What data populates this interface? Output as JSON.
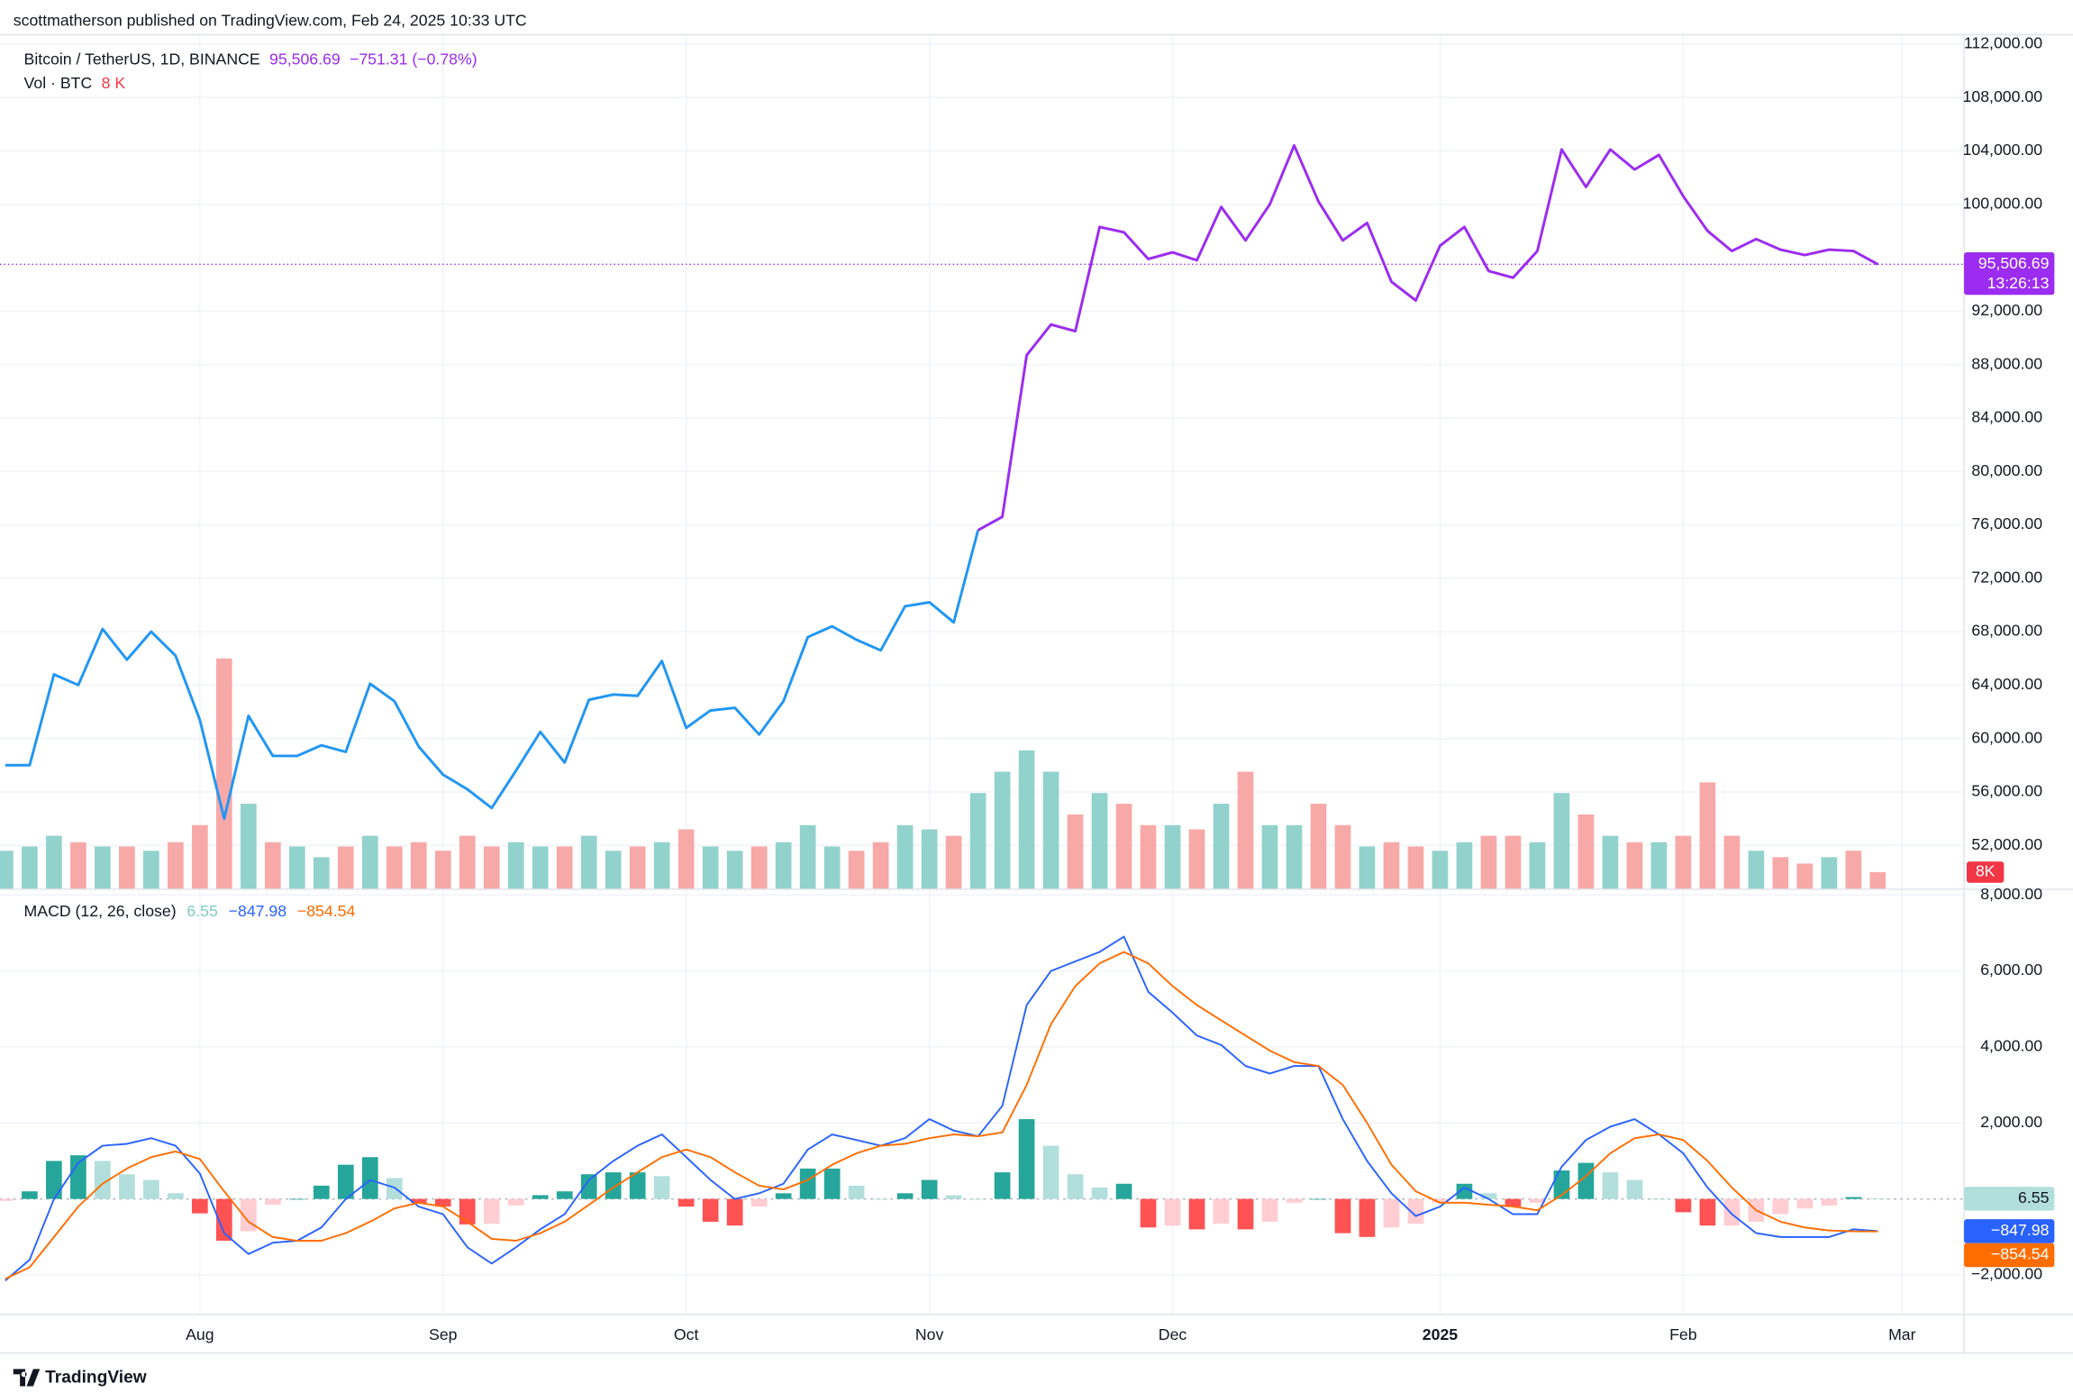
{
  "header": "scottmatherson published on TradingView.com, Feb 24, 2025 10:33 UTC",
  "footer": "TradingView",
  "chart_data": [
    {
      "type": "line",
      "title": "Bitcoin / TetherUS, 1D, BINANCE",
      "price_label": "95,506.69",
      "change_label": "−751.31 (−0.78%)",
      "countdown": "13:26:13",
      "grid": true,
      "categories": [
        null,
        null,
        null,
        null,
        null,
        null,
        null,
        null,
        "Aug",
        null,
        null,
        null,
        null,
        null,
        null,
        null,
        null,
        null,
        "Sep",
        null,
        null,
        null,
        null,
        null,
        null,
        null,
        null,
        null,
        "Oct",
        null,
        null,
        null,
        null,
        null,
        null,
        null,
        null,
        null,
        "Nov",
        null,
        null,
        null,
        null,
        null,
        null,
        null,
        null,
        null,
        "Dec",
        null,
        null,
        null,
        null,
        null,
        null,
        null,
        null,
        null,
        null,
        "2025",
        null,
        null,
        null,
        null,
        null,
        null,
        null,
        null,
        null,
        "Feb",
        null,
        null,
        null,
        null,
        null,
        null,
        null,
        null,
        "Mar",
        null,
        null
      ],
      "series": [
        {
          "color": "#2196f3",
          "values": [
            58000,
            58000,
            64800,
            64000,
            68200,
            65900,
            68000,
            66200,
            61400,
            54000,
            61700,
            58700,
            58700,
            59500,
            59000,
            64100,
            62800,
            59400,
            57300,
            56200,
            54800,
            57600,
            60500,
            58200,
            62900,
            63300,
            63200,
            65800,
            60800,
            62100,
            62300,
            60300,
            62800,
            67600,
            68400,
            67400,
            66600,
            69900,
            70200,
            68700,
            75600,
            null,
            null,
            null,
            null,
            null,
            null,
            null,
            null,
            null,
            null,
            null,
            null,
            null,
            null,
            null,
            null,
            null,
            null,
            null,
            null,
            null,
            null,
            null,
            null,
            null,
            null,
            null,
            null,
            null,
            null,
            null,
            null,
            null,
            null,
            null,
            null,
            null,
            null,
            null,
            null
          ]
        },
        {
          "color": "#9b2cf0",
          "values": [
            null,
            null,
            null,
            null,
            null,
            null,
            null,
            null,
            null,
            null,
            null,
            null,
            null,
            null,
            null,
            null,
            null,
            null,
            null,
            null,
            null,
            null,
            null,
            null,
            null,
            null,
            null,
            null,
            null,
            null,
            null,
            null,
            null,
            null,
            null,
            null,
            null,
            null,
            null,
            null,
            75600,
            76600,
            88700,
            91000,
            90500,
            98300,
            97900,
            95900,
            96400,
            95800,
            99800,
            97300,
            100000,
            104400,
            100200,
            97300,
            98600,
            94200,
            92800,
            96900,
            98300,
            95000,
            94500,
            96500,
            104100,
            101300,
            104100,
            102600,
            103700,
            100600,
            98000,
            96500,
            97400,
            96600,
            96200,
            96600,
            96500,
            95506.69,
            null,
            null,
            null
          ]
        }
      ],
      "ylim": [
        48720,
        112700
      ],
      "yticks": [
        {
          "value": 52000,
          "label": "52,000.00"
        },
        {
          "value": 56000,
          "label": "56,000.00"
        },
        {
          "value": 60000,
          "label": "60,000.00"
        },
        {
          "value": 64000,
          "label": "64,000.00"
        },
        {
          "value": 68000,
          "label": "68,000.00"
        },
        {
          "value": 72000,
          "label": "72,000.00"
        },
        {
          "value": 76000,
          "label": "76,000.00"
        },
        {
          "value": 80000,
          "label": "80,000.00"
        },
        {
          "value": 84000,
          "label": "84,000.00"
        },
        {
          "value": 88000,
          "label": "88,000.00"
        },
        {
          "value": 92000,
          "label": "92,000.00"
        },
        {
          "value": 100000,
          "label": "100,000.00"
        },
        {
          "value": 104000,
          "label": "104,000.00"
        },
        {
          "value": 108000,
          "label": "108,000.00"
        },
        {
          "value": 112000,
          "label": "112,000.00"
        }
      ],
      "volume": {
        "type": "bar",
        "name": "Vol · BTC",
        "last_label": "8 K",
        "badge_label": "8K",
        "up_color": "#92d2cc",
        "down_color": "#f7a9a7",
        "label_color": "#f23645",
        "ylim": [
          0,
          400000
        ],
        "values": [
          18000,
          20000,
          25000,
          22000,
          20000,
          20000,
          18000,
          22000,
          30000,
          108000,
          40000,
          22000,
          20000,
          15000,
          20000,
          25000,
          20000,
          22000,
          18000,
          25000,
          20000,
          22000,
          20000,
          20000,
          25000,
          18000,
          20000,
          22000,
          28000,
          20000,
          18000,
          20000,
          22000,
          30000,
          20000,
          18000,
          22000,
          30000,
          28000,
          25000,
          45000,
          55000,
          65000,
          55000,
          35000,
          45000,
          40000,
          30000,
          30000,
          28000,
          40000,
          55000,
          30000,
          30000,
          40000,
          30000,
          20000,
          22000,
          20000,
          18000,
          22000,
          25000,
          25000,
          22000,
          45000,
          35000,
          25000,
          22000,
          22000,
          25000,
          50000,
          25000,
          18000,
          15000,
          12000,
          15000,
          18000,
          8000,
          null,
          null,
          null
        ]
      }
    },
    {
      "type": "macd",
      "title": "MACD (12, 26, close)",
      "ylim": [
        -3040,
        8150
      ],
      "yticks": [
        {
          "value": -2000,
          "label": "−2,000.00"
        },
        {
          "value": 2000,
          "label": "2,000.00"
        },
        {
          "value": 4000,
          "label": "4,000.00"
        },
        {
          "value": 6000,
          "label": "6,000.00"
        },
        {
          "value": 8000,
          "label": "8,000.00"
        }
      ],
      "histogram": {
        "last_label": "6.55",
        "colors": [
          "#26a69a",
          "#b2dfdb",
          "#ffcdd2",
          "#ff5252"
        ],
        "label_color": "#80cbc4",
        "values": [
          -50,
          200,
          1000,
          1150,
          1000,
          650,
          500,
          150,
          -380,
          -1100,
          -850,
          -150,
          0,
          350,
          900,
          1100,
          550,
          -100,
          -200,
          -670,
          -650,
          -170,
          100,
          200,
          650,
          700,
          700,
          600,
          -200,
          -600,
          -700,
          -200,
          150,
          800,
          800,
          350,
          0,
          150,
          500,
          100,
          0,
          700,
          2100,
          1400,
          650,
          300,
          400,
          -750,
          -700,
          -800,
          -650,
          -800,
          -600,
          -100,
          0,
          -900,
          -1000,
          -750,
          -650,
          -100,
          400,
          150,
          -200,
          -100,
          750,
          950,
          700,
          500,
          0,
          -350,
          -700,
          -700,
          -600,
          -400,
          -250,
          -170,
          50,
          6.55,
          null,
          null,
          null
        ]
      },
      "series": [
        {
          "color": "#2962ff",
          "last_label": "−847.98",
          "values": [
            -2150,
            -1600,
            0,
            950,
            1400,
            1450,
            1600,
            1400,
            670,
            -900,
            -1450,
            -1150,
            -1100,
            -750,
            0,
            500,
            300,
            -200,
            -400,
            -1270,
            -1700,
            -1270,
            -800,
            -400,
            500,
            1000,
            1400,
            1700,
            1100,
            500,
            0,
            150,
            400,
            1300,
            1700,
            1550,
            1400,
            1600,
            2100,
            1800,
            1650,
            2450,
            5100,
            6000,
            6250,
            6500,
            6900,
            5450,
            4900,
            4300,
            4050,
            3500,
            3300,
            3500,
            3500,
            2100,
            1000,
            150,
            -450,
            -200,
            300,
            0,
            -400,
            -400,
            850,
            1550,
            1900,
            2100,
            1700,
            1200,
            300,
            -400,
            -900,
            -1000,
            -1000,
            -1000,
            -800,
            -847.98,
            null,
            null,
            null
          ]
        },
        {
          "color": "#ff6d00",
          "last_label": "−854.54",
          "values": [
            -2100,
            -1800,
            -1000,
            -200,
            400,
            800,
            1100,
            1250,
            1050,
            200,
            -600,
            -1000,
            -1100,
            -1100,
            -900,
            -600,
            -250,
            -100,
            -200,
            -600,
            -1050,
            -1100,
            -900,
            -600,
            -150,
            300,
            700,
            1100,
            1300,
            1100,
            700,
            350,
            250,
            500,
            900,
            1200,
            1400,
            1450,
            1600,
            1700,
            1650,
            1750,
            3000,
            4600,
            5600,
            6200,
            6500,
            6200,
            5600,
            5100,
            4700,
            4300,
            3900,
            3600,
            3500,
            3000,
            2000,
            900,
            200,
            -100,
            -100,
            -150,
            -200,
            -300,
            100,
            600,
            1200,
            1600,
            1700,
            1550,
            1000,
            300,
            -300,
            -600,
            -750,
            -830,
            -850,
            -854.54,
            null,
            null,
            null
          ]
        }
      ]
    }
  ]
}
